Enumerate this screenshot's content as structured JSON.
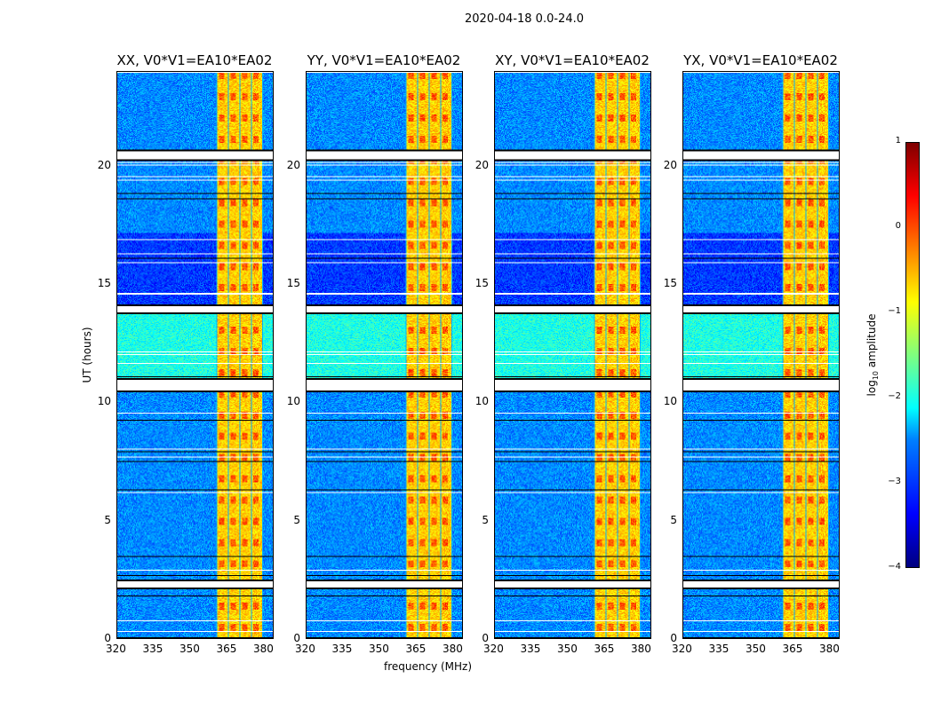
{
  "chart_data": {
    "type": "heatmap",
    "title": "2020-04-18 0.0-24.0",
    "xlabel": "frequency (MHz)",
    "ylabel": "UT (hours)",
    "xlim": [
      320,
      384
    ],
    "ylim": [
      0,
      24
    ],
    "xticks": [
      "320",
      "335",
      "350",
      "365",
      "380"
    ],
    "yticks": [
      "0",
      "5",
      "10",
      "15",
      "20"
    ],
    "panels": [
      {
        "title": "XX, V0*V1=EA10*EA02"
      },
      {
        "title": "YY, V0*V1=EA10*EA02"
      },
      {
        "title": "XY, V0*V1=EA10*EA02"
      },
      {
        "title": "YX, V0*V1=EA10*EA02"
      }
    ],
    "colorbar": {
      "label": "log10 amplitude",
      "label_main": "log",
      "label_sub": "10",
      "label_rest": " amplitude",
      "range": [
        -4,
        1
      ],
      "colormap": "jet",
      "ticks": [
        "1",
        "0",
        "−1",
        "−2",
        "−3",
        "−4"
      ]
    },
    "flagged_bands_mhz": [
      360.5,
      380
    ],
    "flagged_hours": [
      [
        20.3,
        20.6
      ],
      [
        13.8,
        14.05
      ],
      [
        10.5,
        10.95
      ],
      [
        2.15,
        2.4
      ]
    ]
  }
}
